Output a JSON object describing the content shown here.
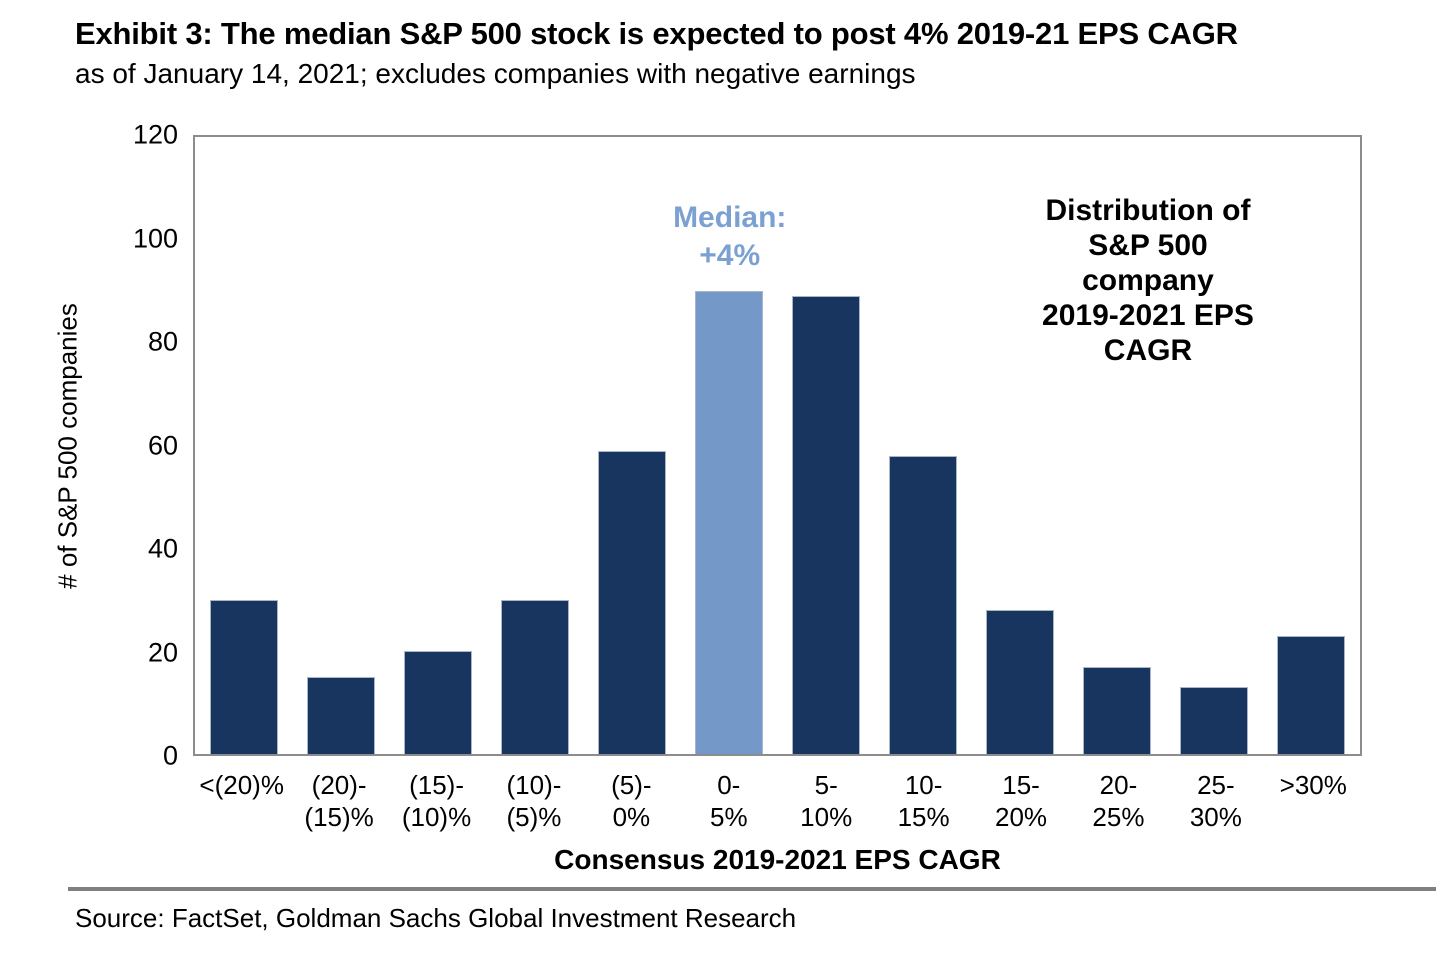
{
  "header": {
    "title": "Exhibit 3: The median S&P 500 stock is expected to post 4% 2019-21 EPS CAGR",
    "subtitle": "as of January 14, 2021; excludes companies with negative earnings"
  },
  "annotations": {
    "median": "Median:\n+4%",
    "distribution": "Distribution of\nS&P 500 company\n2019-2021 EPS CAGR"
  },
  "footer": {
    "source": "Source: FactSet, Goldman Sachs Global Investment Research"
  },
  "chart_data": {
    "type": "bar",
    "title": "Distribution of S&P 500 company 2019-2021 EPS CAGR",
    "xlabel": "Consensus 2019-2021 EPS CAGR",
    "ylabel": "# of S&P 500 companies",
    "categories": [
      "<(20)%",
      "(20)-\n(15)%",
      "(15)-\n(10)%",
      "(10)-\n(5)%",
      "(5)-\n0%",
      "0-\n5%",
      "5-\n10%",
      "10-\n15%",
      "15-\n20%",
      "20-\n25%",
      "25-\n30%",
      ">30%"
    ],
    "values": [
      30,
      15,
      20,
      30,
      59,
      90,
      89,
      58,
      28,
      17,
      13,
      23
    ],
    "highlight_index": 5,
    "median_value_label": "Median: +4%",
    "ylim": [
      0,
      120
    ],
    "yticks": [
      0,
      20,
      40,
      60,
      80,
      100,
      120
    ],
    "grid": false,
    "legend": "none",
    "colors": {
      "bar": "#17355E",
      "highlight": "#7498C8",
      "median_text": "#7BA0D2",
      "frame": "#8C8C8C"
    }
  }
}
